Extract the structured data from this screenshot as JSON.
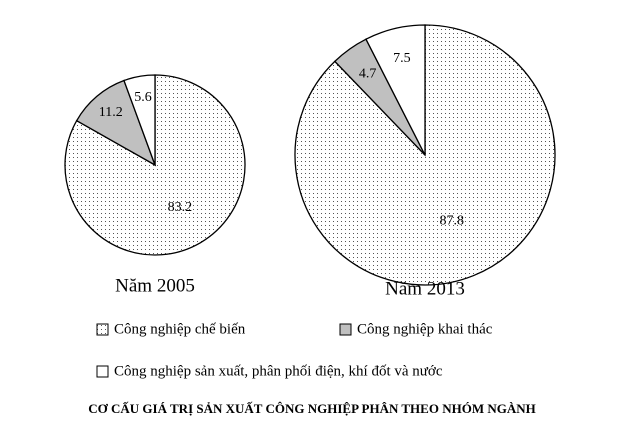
{
  "title": "CƠ CẤU GIÁ TRỊ SẢN XUẤT CÔNG NGHIỆP PHÂN THEO NHÓM NGÀNH",
  "legend": [
    {
      "name": "Công nghiệp chế biến",
      "fill": "dotted"
    },
    {
      "name": "Công nghiệp khai thác",
      "fill": "#c0c0c0"
    },
    {
      "name": "Công nghiệp sản xuất, phân phối điện, khí đốt và nước",
      "fill": "#ffffff"
    }
  ],
  "chart_data": [
    {
      "type": "pie",
      "title": "Năm 2005",
      "values": [
        83.2,
        11.2,
        5.6
      ]
    },
    {
      "type": "pie",
      "title": "Năm 2013",
      "values": [
        87.8,
        4.7,
        7.5
      ]
    }
  ]
}
